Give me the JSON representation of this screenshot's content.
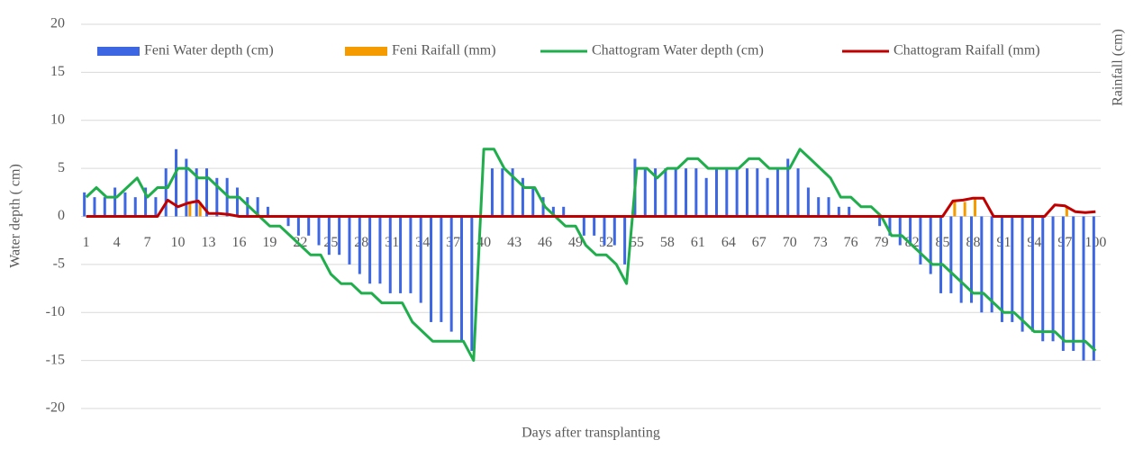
{
  "chart_data": {
    "type": "bar_line",
    "ylabel": "Water depth ( cm)",
    "y2label": "Rainfall (cm)",
    "xlabel": "Days after transplanting",
    "categories": [
      "1",
      null,
      null,
      "4",
      null,
      null,
      "7",
      null,
      null,
      "10",
      null,
      null,
      "13",
      null,
      null,
      "16",
      null,
      null,
      "19",
      null,
      null,
      "22",
      null,
      null,
      "25",
      null,
      null,
      "28",
      null,
      null,
      "31",
      null,
      null,
      "34",
      null,
      null,
      "37",
      null,
      null,
      "40",
      null,
      null,
      "43",
      null,
      null,
      "46",
      null,
      null,
      "49",
      null,
      null,
      "52",
      null,
      null,
      "55",
      null,
      null,
      "58",
      null,
      null,
      "61",
      null,
      null,
      "64",
      null,
      null,
      "67",
      null,
      null,
      "70",
      null,
      null,
      "73",
      null,
      null,
      "76",
      null,
      null,
      "79",
      null,
      null,
      "82",
      null,
      null,
      "85",
      null,
      null,
      "88",
      null,
      null,
      "91",
      null,
      null,
      "94",
      null,
      null,
      "97",
      null,
      null,
      "100"
    ],
    "series": [
      {
        "name": "Feni Water depth (cm)",
        "kind": "bar",
        "color": "#3d66e3",
        "values": [
          2.5,
          2,
          2,
          3,
          2.5,
          2,
          3,
          2,
          5,
          7,
          6,
          5,
          5,
          4,
          4,
          3,
          2,
          2,
          1,
          0,
          -1,
          -2,
          -2,
          -3,
          -4,
          -4,
          -5,
          -6,
          -7,
          -7,
          -8,
          -8,
          -8,
          -9,
          -11,
          -11,
          -12,
          -13,
          -14,
          0,
          5,
          5,
          5,
          4,
          3,
          2,
          1,
          1,
          0,
          -2,
          -2,
          -3,
          -3,
          -5,
          6,
          5,
          5,
          5,
          5,
          5,
          5,
          4,
          5,
          5,
          5,
          5,
          5,
          4,
          5,
          6,
          5,
          3,
          2,
          2,
          1,
          1,
          0,
          0,
          -1,
          -2,
          -3,
          -3,
          -5,
          -6,
          -8,
          -8,
          -9,
          -9,
          -10,
          -10,
          -11,
          -11,
          -12,
          -12,
          -13,
          -13,
          -14,
          -14,
          -15,
          -15
        ]
      },
      {
        "name": "Feni Raifall (mm)",
        "kind": "bar",
        "color": "#f59b00",
        "values": [
          0,
          0,
          0,
          0,
          0,
          0,
          0,
          0,
          0,
          0,
          1.5,
          1.5,
          0,
          0,
          0,
          0,
          0,
          0,
          0,
          0,
          0,
          0,
          0,
          0,
          0,
          0,
          0,
          0,
          0,
          0,
          0,
          0,
          0,
          0,
          0,
          0,
          0,
          0,
          0,
          0,
          0,
          0,
          0,
          0,
          0,
          0,
          0,
          0,
          0,
          0,
          0,
          0,
          0,
          0,
          0,
          0,
          0,
          0,
          0,
          0,
          0,
          0,
          0,
          0,
          0,
          0,
          0,
          0,
          0,
          0,
          0,
          0,
          0,
          0,
          0,
          0,
          0,
          0,
          0,
          0,
          0,
          0,
          0,
          0,
          0,
          1.5,
          1.5,
          2,
          0,
          0,
          0,
          0,
          0,
          0,
          0,
          0,
          1,
          0,
          0,
          0
        ]
      },
      {
        "name": "Chattogram Water depth (cm)",
        "kind": "line",
        "color": "#1fae4b",
        "values": [
          2,
          3,
          2,
          2,
          3,
          4,
          2,
          3,
          3,
          5,
          5,
          4,
          4,
          3,
          2,
          2,
          1,
          0,
          -1,
          -1,
          -2,
          -3,
          -4,
          -4,
          -6,
          -7,
          -7,
          -8,
          -8,
          -9,
          -9,
          -9,
          -11,
          -12,
          -13,
          -13,
          -13,
          -13,
          -15,
          7,
          7,
          5,
          4,
          3,
          3,
          1,
          0,
          -1,
          -1,
          -3,
          -4,
          -4,
          -5,
          -7,
          5,
          5,
          4,
          5,
          5,
          6,
          6,
          5,
          5,
          5,
          5,
          6,
          6,
          5,
          5,
          5,
          7,
          6,
          5,
          4,
          2,
          2,
          1,
          1,
          0,
          -2,
          -2,
          -3,
          -4,
          -5,
          -5,
          -6,
          -7,
          -8,
          -8,
          -9,
          -10,
          -10,
          -11,
          -12,
          -12,
          -12,
          -13,
          -13,
          -13,
          -14
        ]
      },
      {
        "name": "Chattogram Raifall (mm)",
        "kind": "line",
        "color": "#c00000",
        "values": [
          0,
          0,
          0,
          0,
          0,
          0,
          0,
          0,
          1.7,
          1,
          1.4,
          1.6,
          0.3,
          0.3,
          0.2,
          0,
          0,
          0,
          0,
          0,
          0,
          0,
          0,
          0,
          0,
          0,
          0,
          0,
          0,
          0,
          0,
          0,
          0,
          0,
          0,
          0,
          0,
          0,
          0,
          0,
          0,
          0,
          0,
          0,
          0,
          0,
          0,
          0,
          0,
          0,
          0,
          0,
          0,
          0,
          0,
          0,
          0,
          0,
          0,
          0,
          0,
          0,
          0,
          0,
          0,
          0,
          0,
          0,
          0,
          0,
          0,
          0,
          0,
          0,
          0,
          0,
          0,
          0,
          0,
          0,
          0,
          0,
          0,
          0,
          0,
          1.6,
          1.7,
          1.9,
          1.9,
          0,
          0,
          0,
          0,
          0,
          0,
          1.2,
          1.1,
          0.5,
          0.4,
          0.5
        ]
      }
    ],
    "ylim": [
      -20,
      20
    ],
    "yticks": [
      -20,
      -15,
      -10,
      -5,
      0,
      5,
      10,
      15,
      20
    ],
    "grid": true,
    "legend": "top"
  }
}
